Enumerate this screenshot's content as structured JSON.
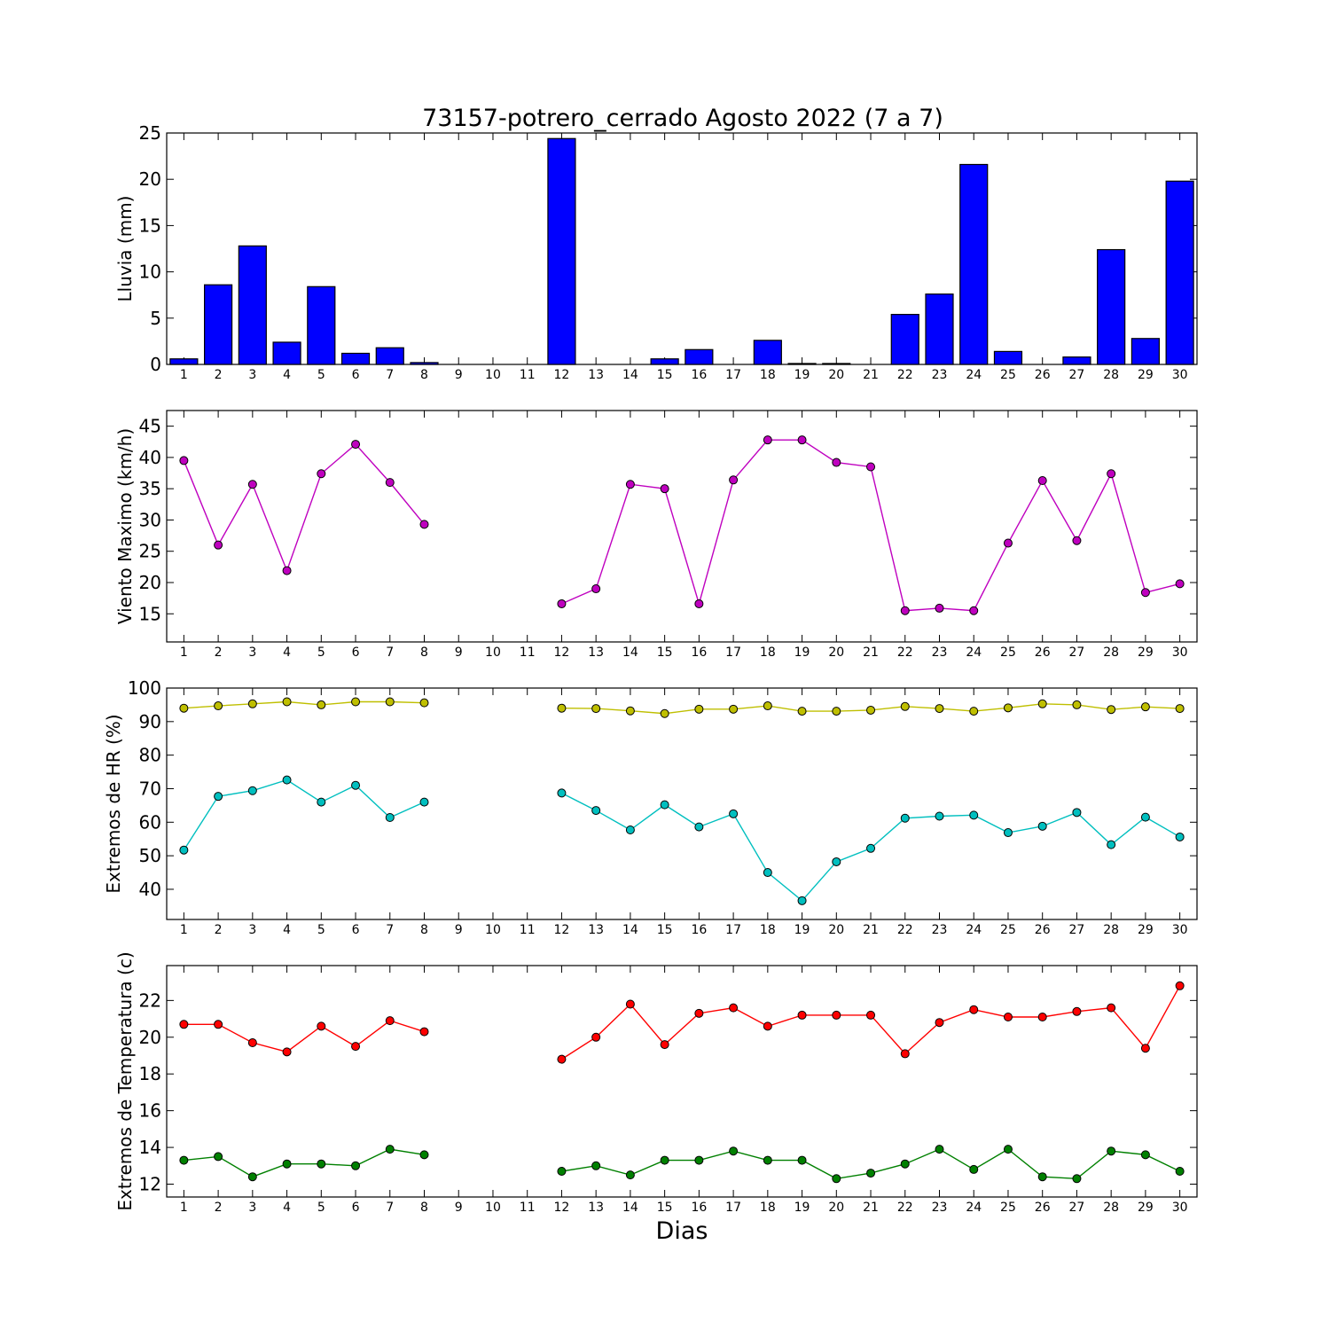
{
  "chart_data": {
    "title": "73157-potrero_cerrado Agosto 2022  (7 a 7)",
    "xlabel": "Dias",
    "categories": [
      "1",
      "2",
      "3",
      "4",
      "5",
      "6",
      "7",
      "8",
      "9",
      "10",
      "11",
      "12",
      "13",
      "14",
      "15",
      "16",
      "17",
      "18",
      "19",
      "20",
      "21",
      "22",
      "23",
      "24",
      "25",
      "26",
      "27",
      "28",
      "29",
      "30"
    ],
    "panels": [
      {
        "type": "bar",
        "ylabel": "Lluvia (mm)",
        "ylim": [
          0,
          25
        ],
        "yticks": [
          0,
          5,
          10,
          15,
          20,
          25
        ],
        "series": [
          {
            "color": "#0000ff",
            "values": [
              0.6,
              8.6,
              12.8,
              2.4,
              8.4,
              1.2,
              1.8,
              0.2,
              0,
              0,
              0,
              24.4,
              0,
              0,
              0.6,
              1.6,
              0,
              2.6,
              0.1,
              0.1,
              0,
              5.4,
              7.6,
              21.6,
              1.4,
              0,
              0.8,
              12.4,
              2.8,
              19.8
            ]
          }
        ]
      },
      {
        "type": "line",
        "ylabel": "Viento Maximo (km/h)",
        "ylim": [
          10.5,
          47.5
        ],
        "yticks": [
          15,
          20,
          25,
          30,
          35,
          40,
          45
        ],
        "series": [
          {
            "color": "#bf00bf",
            "values": [
              39.5,
              26.0,
              35.7,
              21.9,
              37.4,
              42.1,
              36.0,
              29.3,
              null,
              null,
              null,
              16.6,
              19.0,
              35.7,
              35.0,
              16.6,
              36.4,
              42.8,
              42.8,
              39.2,
              38.5,
              15.5,
              15.9,
              15.5,
              26.3,
              36.3,
              26.7,
              37.4,
              18.4,
              19.8
            ]
          }
        ]
      },
      {
        "type": "line",
        "ylabel": "Extremos de HR (%)",
        "ylim": [
          31,
          100
        ],
        "yticks": [
          40,
          50,
          60,
          70,
          80,
          90,
          100
        ],
        "series": [
          {
            "color": "#bfbf00",
            "values": [
              94,
              94.7,
              95.3,
              95.9,
              95,
              95.9,
              95.9,
              95.6,
              null,
              null,
              null,
              94,
              93.9,
              93.2,
              92.4,
              93.7,
              93.7,
              94.7,
              93.1,
              93.1,
              93.4,
              94.5,
              93.9,
              93.1,
              94.1,
              95.3,
              95,
              93.6,
              94.4,
              93.9
            ]
          },
          {
            "color": "#00bfbf",
            "values": [
              51.7,
              67.7,
              69.4,
              72.6,
              66,
              71,
              61.4,
              66,
              null,
              null,
              null,
              68.7,
              63.5,
              57.7,
              65.2,
              58.6,
              62.5,
              45,
              36.6,
              48.2,
              52.2,
              61.2,
              61.8,
              62.1,
              56.9,
              58.8,
              62.9,
              53.3,
              61.5,
              55.6
            ]
          }
        ]
      },
      {
        "type": "line",
        "ylabel": "Extremos de Temperatura (c)",
        "ylim": [
          11.3,
          23.9
        ],
        "yticks": [
          12,
          14,
          16,
          18,
          20,
          22
        ],
        "series": [
          {
            "color": "#ff0000",
            "values": [
              20.7,
              20.7,
              19.7,
              19.2,
              20.6,
              19.5,
              20.9,
              20.3,
              null,
              null,
              null,
              18.8,
              20.0,
              21.8,
              19.6,
              21.3,
              21.6,
              20.6,
              21.2,
              21.2,
              21.2,
              19.1,
              20.8,
              21.5,
              21.1,
              21.1,
              21.4,
              21.6,
              19.4,
              22.8
            ]
          },
          {
            "color": "#008000",
            "values": [
              13.3,
              13.5,
              12.4,
              13.1,
              13.1,
              13.0,
              13.9,
              13.6,
              null,
              null,
              null,
              12.7,
              13.0,
              12.5,
              13.3,
              13.3,
              13.8,
              13.3,
              13.3,
              12.3,
              12.6,
              13.1,
              13.9,
              12.8,
              13.9,
              12.4,
              12.3,
              13.8,
              13.6,
              12.7
            ]
          }
        ]
      }
    ]
  }
}
